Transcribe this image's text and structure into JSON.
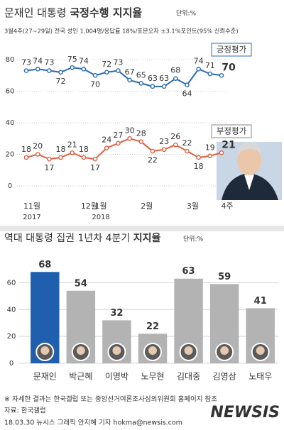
{
  "chart_data": [
    {
      "type": "line",
      "title": [
        "문재인 대통령",
        "국정수행 지지율"
      ],
      "unit": "단위:%",
      "subtitle": "3월4주(27~29일) 전국 성인 1,004명/응답률 18%/표본오차 ±3.1%포인트(95% 신뢰수준)",
      "categories": [
        "11월",
        null,
        null,
        null,
        null,
        "12월",
        "1월",
        null,
        null,
        null,
        "2월",
        null,
        null,
        null,
        "3월",
        null,
        null,
        "4주"
      ],
      "years": [
        "2017",
        null,
        null,
        null,
        null,
        null,
        "2018",
        null,
        null,
        null,
        null,
        null,
        null,
        null,
        null,
        null,
        null,
        null
      ],
      "series": [
        {
          "name": "긍정평가",
          "color": "#2a6bb3",
          "values": [
            73,
            74,
            73,
            72,
            75,
            74,
            70,
            72,
            73,
            67,
            65,
            63,
            63,
            68,
            64,
            74,
            71,
            70
          ]
        },
        {
          "name": "부정평가",
          "color": "#e0603f",
          "values": [
            18,
            20,
            17,
            18,
            21,
            18,
            17,
            24,
            27,
            30,
            28,
            22,
            23,
            26,
            22,
            18,
            19,
            21
          ]
        }
      ],
      "ylim": [
        0,
        80
      ],
      "yticks": [
        0,
        20,
        40,
        60,
        80
      ],
      "grid": true
    },
    {
      "type": "bar",
      "title": [
        "역대 대통령 집권 1년차 4분기",
        "지지율"
      ],
      "unit": "단위:%",
      "categories": [
        "문재인",
        "박근혜",
        "이명박",
        "노무현",
        "김대중",
        "김영삼",
        "노태우"
      ],
      "values": [
        68,
        54,
        32,
        22,
        63,
        59,
        41
      ],
      "colors": [
        "#1f5fae",
        "#b3b3b3",
        "#b3b3b3",
        "#b3b3b3",
        "#b3b3b3",
        "#b3b3b3",
        "#b3b3b3"
      ],
      "ylim": [
        0,
        75
      ],
      "yticks": [
        0,
        20,
        40,
        60
      ],
      "grid": true
    }
  ],
  "notes": [
    "※ 자세한 결과는 한국갤럽 또는 중앙선거여론조사심의위원회 홈페이지 참조",
    "자료: 한국갤럽",
    "18.03.30 뉴시스 그래픽 안지혜 기자 hokma@newsis.com"
  ],
  "watermark": "NEWSIS"
}
